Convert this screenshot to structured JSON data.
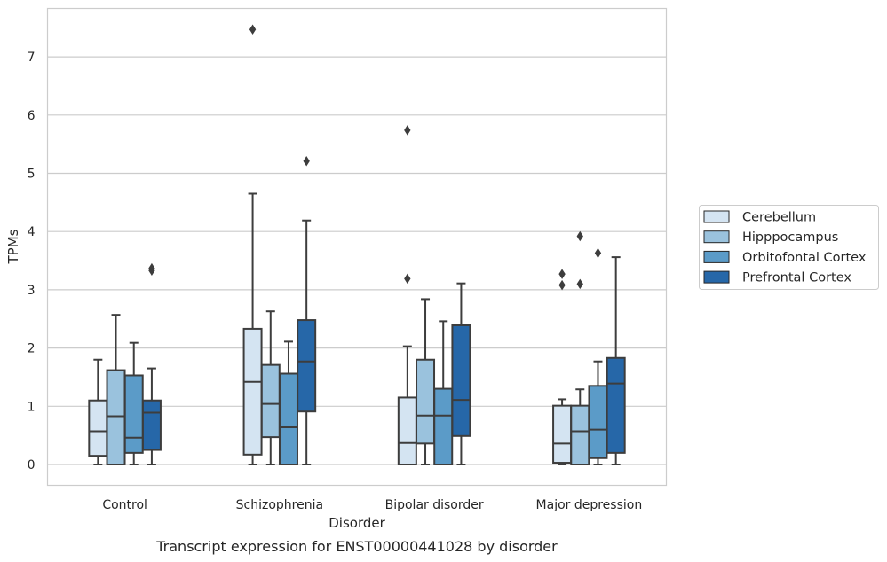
{
  "chart_data": {
    "type": "box",
    "caption": "Transcript expression for ENST00000441028 by disorder",
    "xlabel": "Disorder",
    "ylabel": "TPMs",
    "ylim": [
      -0.37,
      7.85
    ],
    "yticks": [
      0,
      1,
      2,
      3,
      4,
      5,
      6,
      7
    ],
    "categories": [
      "Control",
      "Schizophrenia",
      "Bipolar disorder",
      "Major depression"
    ],
    "grid": "horizontal",
    "legend_position": "right",
    "series": [
      {
        "name": "Cerebellum",
        "color": "#d4e4f2",
        "boxes": [
          {
            "whisker_low": 0,
            "q1": 0.15,
            "median": 0.57,
            "q3": 1.1,
            "whisker_high": 1.8,
            "outliers": []
          },
          {
            "whisker_low": 0,
            "q1": 0.17,
            "median": 1.42,
            "q3": 2.33,
            "whisker_high": 4.65,
            "outliers": [
              7.47
            ]
          },
          {
            "whisker_low": 0,
            "q1": 0,
            "median": 0.37,
            "q3": 1.15,
            "whisker_high": 2.03,
            "outliers": [
              3.19,
              5.74
            ]
          },
          {
            "whisker_low": 0,
            "q1": 0.03,
            "median": 0.36,
            "q3": 1.01,
            "whisker_high": 1.12,
            "outliers": [
              3.08,
              3.27
            ]
          }
        ]
      },
      {
        "name": "Hipppocampus",
        "color": "#9ac2dd",
        "boxes": [
          {
            "whisker_low": 0,
            "q1": 0,
            "median": 0.83,
            "q3": 1.62,
            "whisker_high": 2.57,
            "outliers": []
          },
          {
            "whisker_low": 0,
            "q1": 0.47,
            "median": 1.04,
            "q3": 1.71,
            "whisker_high": 2.63,
            "outliers": []
          },
          {
            "whisker_low": 0,
            "q1": 0.36,
            "median": 0.84,
            "q3": 1.8,
            "whisker_high": 2.84,
            "outliers": []
          },
          {
            "whisker_low": 0,
            "q1": 0,
            "median": 0.57,
            "q3": 1.01,
            "whisker_high": 1.29,
            "outliers": [
              3.1,
              3.92
            ]
          }
        ]
      },
      {
        "name": "Orbitofontal Cortex",
        "color": "#5b9bc8",
        "boxes": [
          {
            "whisker_low": 0,
            "q1": 0.2,
            "median": 0.46,
            "q3": 1.53,
            "whisker_high": 2.09,
            "outliers": []
          },
          {
            "whisker_low": 0,
            "q1": 0,
            "median": 0.64,
            "q3": 1.56,
            "whisker_high": 2.11,
            "outliers": []
          },
          {
            "whisker_low": 0,
            "q1": 0,
            "median": 0.84,
            "q3": 1.3,
            "whisker_high": 2.46,
            "outliers": []
          },
          {
            "whisker_low": 0,
            "q1": 0.11,
            "median": 0.6,
            "q3": 1.35,
            "whisker_high": 1.77,
            "outliers": [
              3.63
            ]
          }
        ]
      },
      {
        "name": "Prefrontal Cortex",
        "color": "#2667a8",
        "boxes": [
          {
            "whisker_low": 0,
            "q1": 0.25,
            "median": 0.89,
            "q3": 1.1,
            "whisker_high": 1.65,
            "outliers": [
              3.33,
              3.37
            ]
          },
          {
            "whisker_low": 0,
            "q1": 0.91,
            "median": 1.77,
            "q3": 2.48,
            "whisker_high": 4.19,
            "outliers": [
              5.21
            ]
          },
          {
            "whisker_low": 0,
            "q1": 0.49,
            "median": 1.11,
            "q3": 2.39,
            "whisker_high": 3.11,
            "outliers": []
          },
          {
            "whisker_low": 0,
            "q1": 0.2,
            "median": 1.39,
            "q3": 1.83,
            "whisker_high": 3.56,
            "outliers": []
          }
        ]
      }
    ]
  }
}
